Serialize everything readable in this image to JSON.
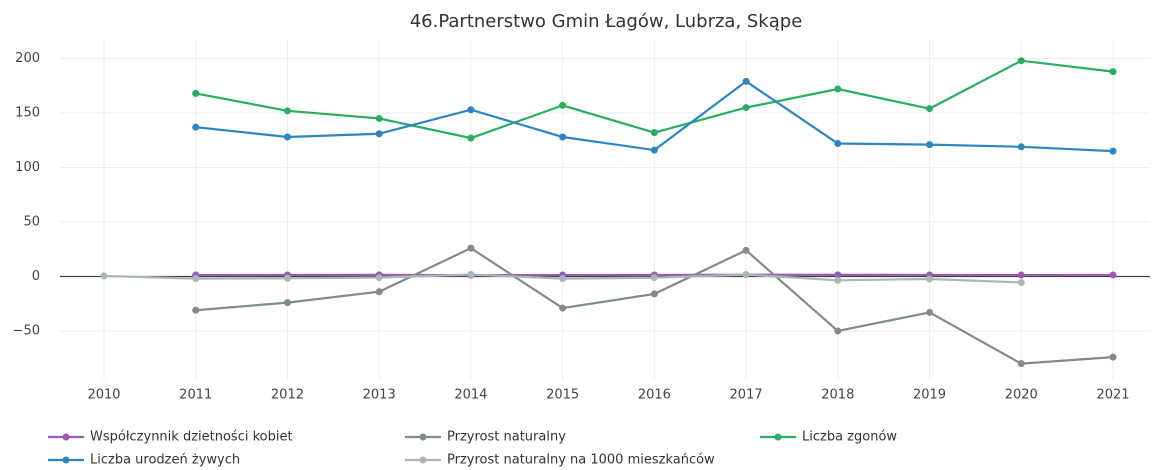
{
  "chart_data": {
    "type": "line",
    "title": "46.Partnerstwo Gmin Łagów, Lubrza, Skąpe",
    "categories": [
      "2010",
      "2011",
      "2012",
      "2013",
      "2014",
      "2015",
      "2016",
      "2017",
      "2018",
      "2019",
      "2020",
      "2021"
    ],
    "series": [
      {
        "name": "Współczynnik dzietności kobiet",
        "color": "#9b59b6",
        "values": [
          null,
          1.3,
          1.4,
          1.5,
          1.2,
          1.3,
          1.4,
          1.6,
          1.5,
          1.4,
          1.3,
          1.4
        ]
      },
      {
        "name": "Przyrost naturalny",
        "color": "#7f8c8d",
        "values": [
          null,
          -31,
          -24,
          -14,
          26,
          -29,
          -16,
          24,
          -50,
          -33,
          -80,
          -74
        ]
      },
      {
        "name": "Liczba zgonów",
        "color": "#27ae60",
        "values": [
          null,
          168,
          152,
          145,
          127,
          157,
          132,
          155,
          172,
          154,
          198,
          188
        ]
      },
      {
        "name": "Liczba urodzeń żywych",
        "color": "#2e86c1",
        "values": [
          null,
          137,
          128,
          131,
          153,
          128,
          116,
          179,
          122,
          121,
          119,
          115
        ]
      },
      {
        "name": "Przyrost naturalny na 1000 mieszkańców",
        "color": "#aab7b8",
        "values": [
          0.5,
          -2.0,
          -1.6,
          -1.0,
          1.8,
          -2.0,
          -1.1,
          1.7,
          -3.5,
          -2.3,
          -5.5,
          null
        ]
      }
    ],
    "ylim": [
      -95,
      217
    ],
    "yticks": [
      {
        "value": -50,
        "label": "−50"
      },
      0,
      50,
      100,
      150,
      200
    ],
    "grid": true
  }
}
